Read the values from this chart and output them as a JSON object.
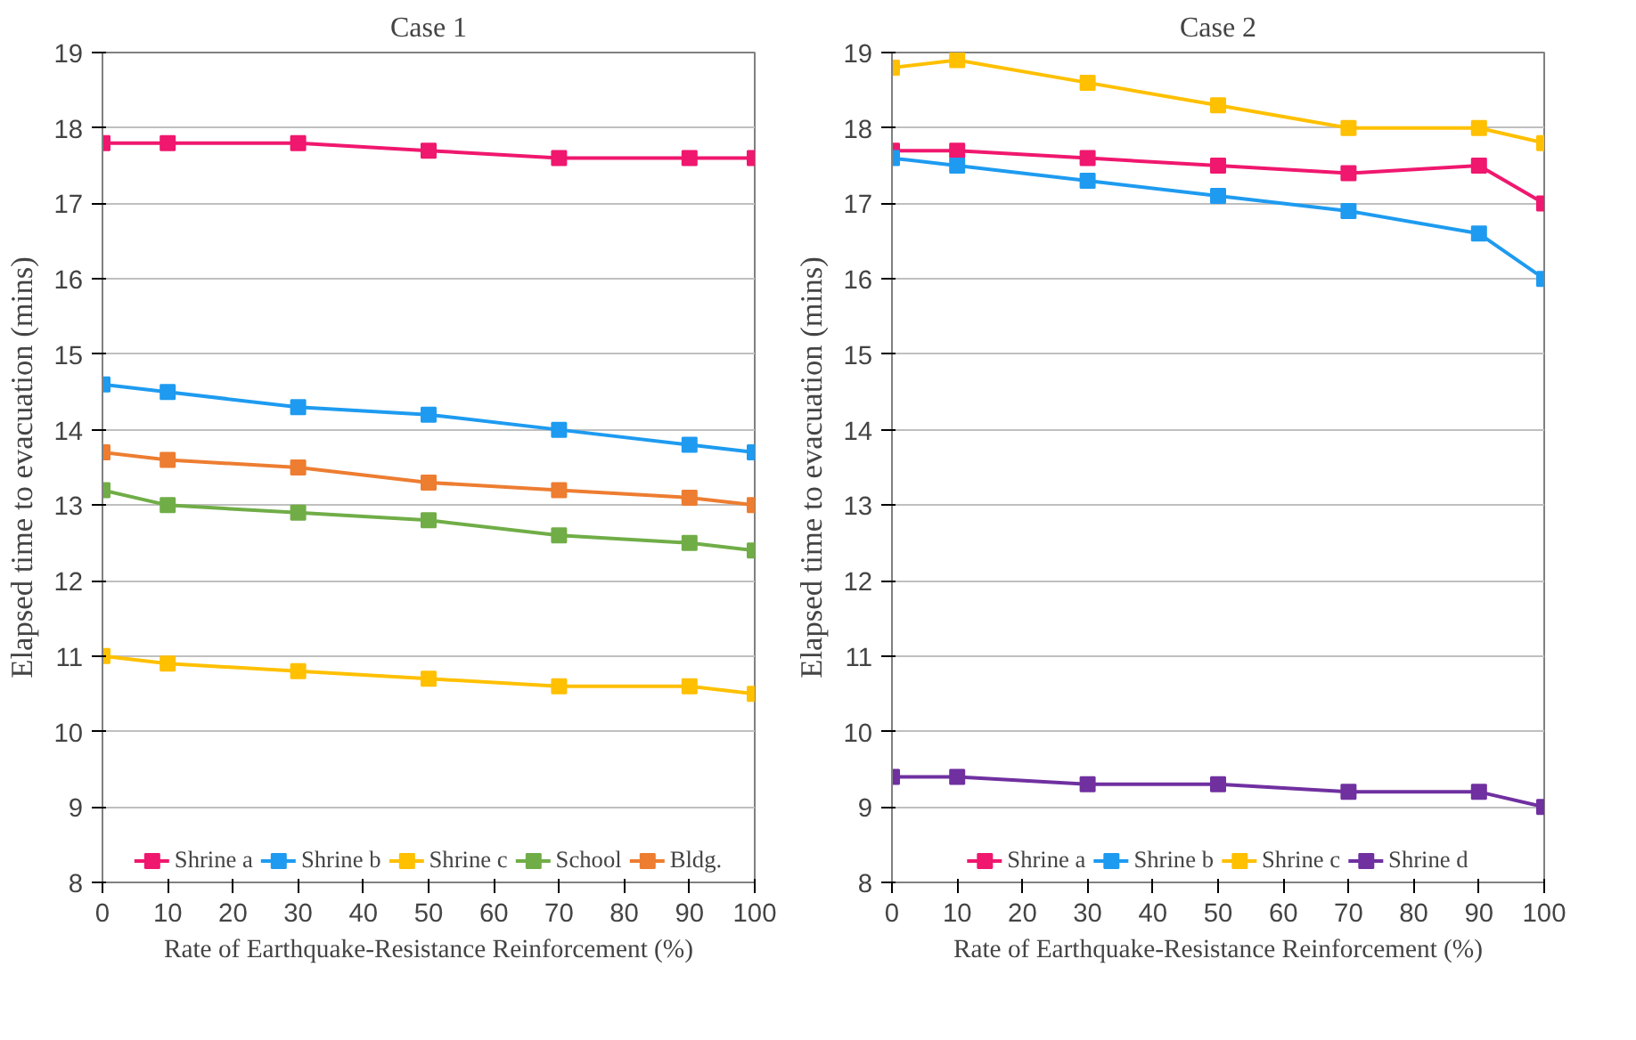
{
  "chart_data": [
    {
      "type": "line",
      "title": "Case 1",
      "xlabel": "Rate of Earthquake-Resistance Reinforcement (%)",
      "ylabel": "Elapsed time to evacuation (mins)",
      "x": [
        0,
        10,
        30,
        50,
        70,
        90,
        100
      ],
      "xlim": [
        0,
        100
      ],
      "xticks": [
        0,
        10,
        20,
        30,
        40,
        50,
        60,
        70,
        80,
        90,
        100
      ],
      "ylim": [
        8,
        19
      ],
      "yticks": [
        8,
        9,
        10,
        11,
        12,
        13,
        14,
        15,
        16,
        17,
        18,
        19
      ],
      "grid": "y",
      "legend": "bottom",
      "marker": "square",
      "line_style": "solid",
      "series": [
        {
          "name": "Shrine a",
          "color": "#f0176e",
          "values": [
            17.8,
            17.8,
            17.8,
            17.7,
            17.6,
            17.6,
            17.6
          ]
        },
        {
          "name": "Shrine b",
          "color": "#1e9bf0",
          "values": [
            14.6,
            14.5,
            14.3,
            14.2,
            14.0,
            13.8,
            13.7
          ]
        },
        {
          "name": "Shrine c",
          "color": "#ffc000",
          "values": [
            11.0,
            10.9,
            10.8,
            10.7,
            10.6,
            10.6,
            10.5
          ]
        },
        {
          "name": "School",
          "color": "#70ad47",
          "values": [
            13.2,
            13.0,
            12.9,
            12.8,
            12.6,
            12.5,
            12.4
          ]
        },
        {
          "name": "Bldg.",
          "color": "#ed7d31",
          "values": [
            13.7,
            13.6,
            13.5,
            13.3,
            13.2,
            13.1,
            13.0
          ]
        }
      ]
    },
    {
      "type": "line",
      "title": "Case 2",
      "xlabel": "Rate of Earthquake-Resistance Reinforcement (%)",
      "ylabel": "Elapsed time to evacuation (mins)",
      "x": [
        0,
        10,
        30,
        50,
        70,
        90,
        100
      ],
      "xlim": [
        0,
        100
      ],
      "xticks": [
        0,
        10,
        20,
        30,
        40,
        50,
        60,
        70,
        80,
        90,
        100
      ],
      "ylim": [
        8,
        19
      ],
      "yticks": [
        8,
        9,
        10,
        11,
        12,
        13,
        14,
        15,
        16,
        17,
        18,
        19
      ],
      "grid": "y",
      "legend": "bottom",
      "marker": "square",
      "line_style": "solid",
      "series": [
        {
          "name": "Shrine a",
          "color": "#f0176e",
          "values": [
            17.7,
            17.7,
            17.6,
            17.5,
            17.4,
            17.5,
            17.0
          ]
        },
        {
          "name": "Shrine b",
          "color": "#1e9bf0",
          "values": [
            17.6,
            17.5,
            17.3,
            17.1,
            16.9,
            16.6,
            16.0
          ]
        },
        {
          "name": "Shrine c",
          "color": "#ffc000",
          "values": [
            18.8,
            18.9,
            18.6,
            18.3,
            18.0,
            18.0,
            17.8
          ]
        },
        {
          "name": "Shrine d",
          "color": "#7030a0",
          "values": [
            9.4,
            9.4,
            9.3,
            9.3,
            9.2,
            9.2,
            9.0
          ]
        }
      ]
    }
  ]
}
